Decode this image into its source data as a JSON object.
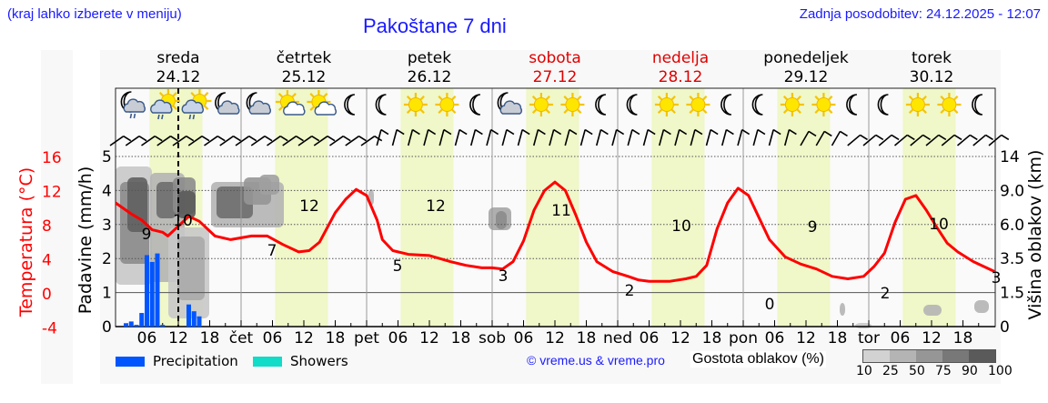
{
  "header": {
    "hint": "(kraj lahko izberete v meniju)",
    "title": "Pakoštane 7 dni",
    "updated": "Zadnja posodobitev: 24.12.2025 - 12:07"
  },
  "days": [
    {
      "name": "sreda",
      "date": "24.12",
      "weekend": false
    },
    {
      "name": "četrtek",
      "date": "25.12",
      "weekend": false
    },
    {
      "name": "petek",
      "date": "26.12",
      "weekend": false
    },
    {
      "name": "sobota",
      "date": "27.12",
      "weekend": true
    },
    {
      "name": "nedelja",
      "date": "28.12",
      "weekend": true
    },
    {
      "name": "ponedeljek",
      "date": "29.12",
      "weekend": false
    },
    {
      "name": "torek",
      "date": "30.12",
      "weekend": false
    }
  ],
  "icons": [
    "moon-cloud-rain",
    "sun-cloud-rain",
    "sun-cloud-rain",
    "moon-cloud",
    "moon-cloud",
    "sun-cloud",
    "sun-cloud",
    "moon",
    "moon",
    "sun",
    "sun",
    "moon",
    "moon-cloud",
    "sun",
    "sun",
    "moon",
    "moon",
    "sun",
    "sun",
    "moon",
    "moon",
    "sun",
    "sun",
    "moon",
    "moon",
    "sun",
    "sun",
    "moon"
  ],
  "legend": {
    "precipitation": "Precipitation",
    "showers": "Showers",
    "precipitation_color": "#0055ff",
    "showers_color": "#10dcc8",
    "copyright": "© vreme.us & vreme.pro",
    "cloud_density_label": "Gostota oblakov (%)",
    "cloud_density_ticks": [
      "10",
      "25",
      "50",
      "75",
      "90",
      "100"
    ],
    "cloud_density_colors": [
      "#d2d2d2",
      "#b4b4b4",
      "#969696",
      "#787878",
      "#5a5a5a"
    ]
  },
  "chart_data": {
    "type": "line",
    "title": "Pakoštane 7 dni",
    "x_tick_labels": [
      "06",
      "12",
      "18",
      "čet",
      "06",
      "12",
      "18",
      "pet",
      "06",
      "12",
      "18",
      "sob",
      "06",
      "12",
      "18",
      "ned",
      "06",
      "12",
      "18",
      "pon",
      "06",
      "12",
      "18",
      "tor",
      "06",
      "12",
      "18"
    ],
    "left_axis_temperature": {
      "label": "Temperatura (°C)",
      "ticks": [
        "16",
        "12",
        "8",
        "4",
        "0",
        "-4"
      ],
      "range": [
        -4,
        16
      ],
      "color": "#ff0000"
    },
    "left_axis_precip": {
      "label": "Padavine (mm/h)",
      "ticks": [
        "5",
        "4",
        "3",
        "2",
        "1",
        "0"
      ],
      "range": [
        0,
        5
      ]
    },
    "right_axis_cloud_height": {
      "label": "Višina oblakov (km)",
      "ticks": [
        "14",
        "9.0",
        "6.0",
        "3.5",
        "1.5",
        "0"
      ]
    },
    "now_marker": "24.12 12:00",
    "series": [
      {
        "name": "Temperatura",
        "color": "#ff0000",
        "hours": [
          0,
          6,
          10,
          14,
          18,
          22,
          26,
          30,
          34,
          37,
          40,
          44,
          48,
          52,
          56,
          60,
          64,
          68,
          72,
          76,
          80,
          84,
          88,
          92,
          96,
          100,
          104,
          108,
          110,
          114,
          118,
          122,
          126,
          130,
          134,
          138,
          142,
          148,
          152,
          156,
          160,
          164,
          168,
          170,
          174,
          180,
          186,
          190,
          194,
          198,
          204,
          206,
          210,
          214,
          218,
          222,
          226,
          228,
          230,
          234,
          238,
          242,
          246,
          250,
          254,
          258,
          262,
          266,
          272,
          276,
          280,
          284,
          288,
          292,
          296,
          300,
          304,
          306,
          310,
          314,
          320,
          324,
          328,
          334,
          338,
          342,
          346,
          350,
          354,
          358,
          362,
          366,
          370,
          374,
          378,
          382,
          386,
          390,
          394,
          398,
          402,
          406,
          410,
          414,
          418,
          422,
          426,
          430,
          434,
          438,
          442,
          446,
          450,
          454,
          458,
          462,
          466,
          470,
          474,
          478,
          482,
          486,
          490,
          494,
          498,
          502,
          506,
          510,
          514,
          518,
          522,
          526,
          530,
          534,
          538,
          542,
          546,
          550,
          554,
          558,
          562,
          566,
          570,
          574,
          578,
          582,
          586,
          590,
          594,
          598,
          602,
          606,
          610,
          614,
          618,
          622,
          626,
          630,
          634,
          638,
          642,
          646,
          650,
          654,
          658,
          662,
          666,
          670,
          674,
          678
        ],
        "note": "piecewise curve sampled below",
        "values_summary": "starts ~11 °C, min 9 (24.12 ~07h), max 10 (24.12 ~13h), 7 (25.12 ~06h), max 12 (25.12 ~13h), min 5 (26.12 ~06h), max 12 (26.12 ~13h), min 3 (27.12 ~03h), max 11 (27.12 ~13h), min 2 (28.12 ~07h), max 10 (28.12 ~13h), min 0 (29.12 ~05h), max 9 (29.12 ~13h), min 2 (30.12 ~03h), max 10 (30.12 ~13h), 3 at end"
      },
      {
        "name": "Precipitation",
        "unit": "mm/h",
        "color": "#0055ff",
        "points": [
          {
            "hour": 2,
            "value": 0.1
          },
          {
            "hour": 3,
            "value": 0.15
          },
          {
            "hour": 4,
            "value": 0.05
          },
          {
            "hour": 5,
            "value": 0.4
          },
          {
            "hour": 6,
            "value": 2.1
          },
          {
            "hour": 7,
            "value": 1.9
          },
          {
            "hour": 8,
            "value": 2.15
          },
          {
            "hour": 9,
            "value": 0.05
          },
          {
            "hour": 14,
            "value": 0.65
          },
          {
            "hour": 15,
            "value": 0.45
          },
          {
            "hour": 16,
            "value": 0.3
          }
        ]
      }
    ],
    "temperature_labels": [
      {
        "hour": 6,
        "value": "9"
      },
      {
        "hour": 13,
        "value": "10"
      },
      {
        "hour": 29,
        "value": "7"
      },
      {
        "hour": 37,
        "value": "12"
      },
      {
        "hour": 54,
        "value": "5"
      },
      {
        "hour": 61,
        "value": "12"
      },
      {
        "hour": 74,
        "value": "3"
      },
      {
        "hour": 85,
        "value": "11"
      },
      {
        "hour": 104,
        "value": "2"
      },
      {
        "hour": 109,
        "value": "10"
      },
      {
        "hour": 126,
        "value": "0"
      },
      {
        "hour": 133,
        "value": "9"
      },
      {
        "hour": 150,
        "value": "2"
      },
      {
        "hour": 157,
        "value": "10"
      },
      {
        "hour": 168,
        "value": "3"
      }
    ],
    "grid": true
  }
}
